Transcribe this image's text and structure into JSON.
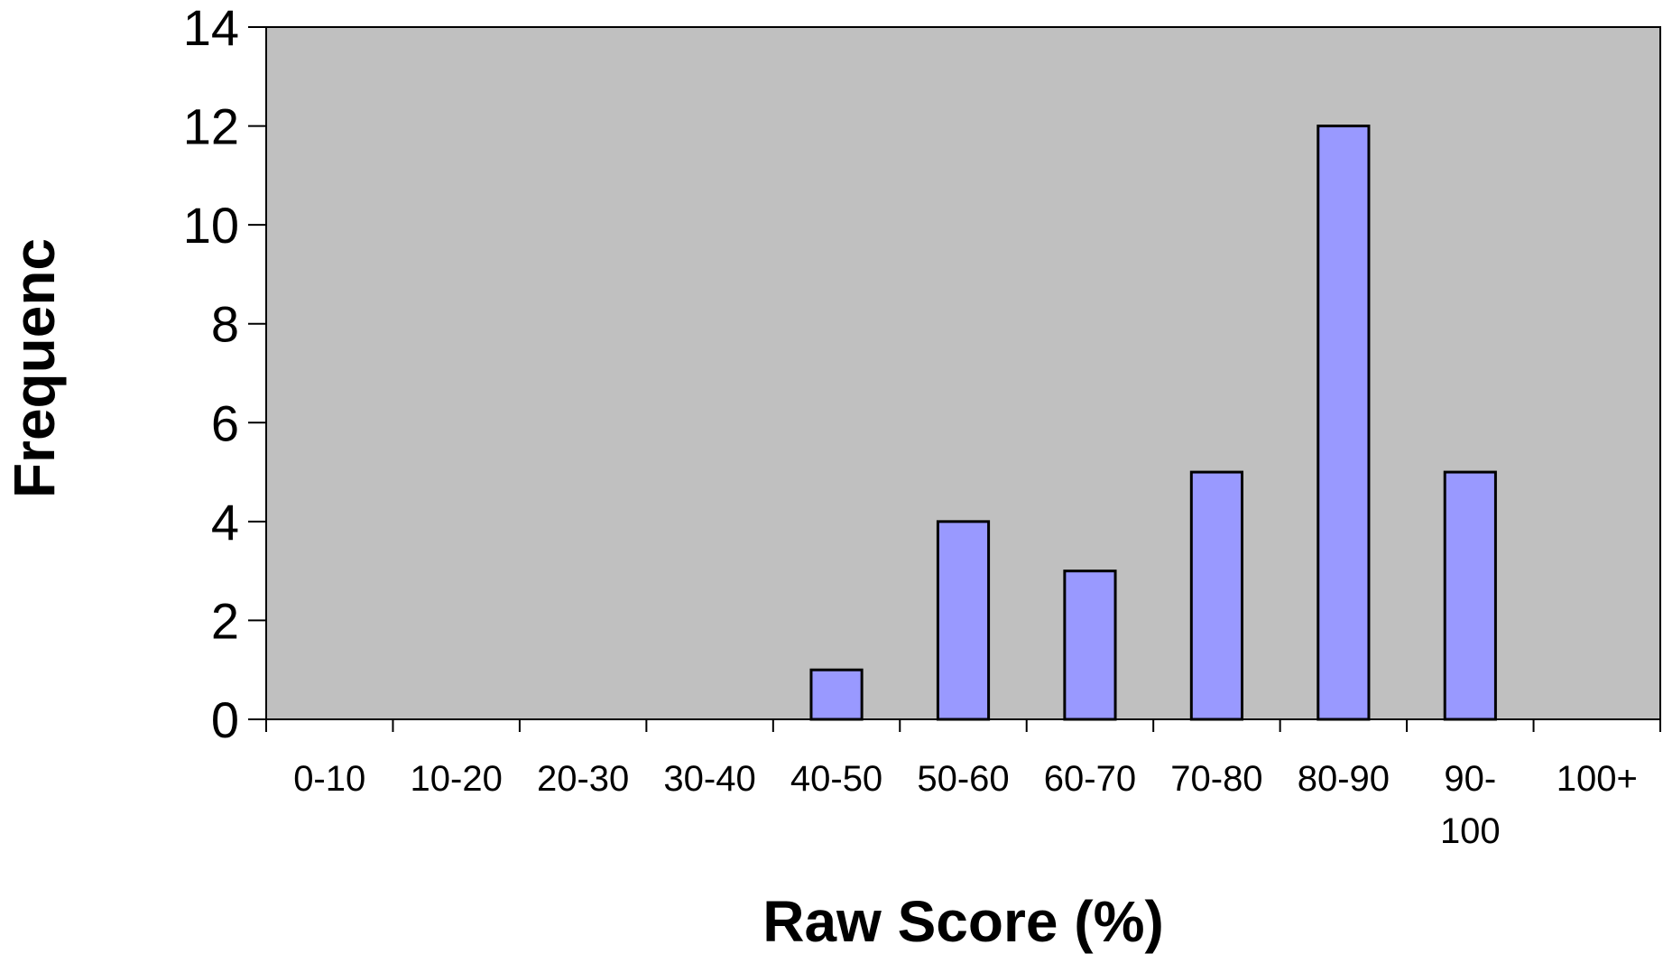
{
  "chart_data": {
    "type": "bar",
    "title": "",
    "xlabel": "Raw Score (%)",
    "ylabel": "Frequenc",
    "categories": [
      "0-10",
      "10-20",
      "20-30",
      "30-40",
      "40-50",
      "50-60",
      "60-70",
      "70-80",
      "80-90",
      "90-100",
      "100+"
    ],
    "category_label_lines": [
      [
        "0-10"
      ],
      [
        "10-20"
      ],
      [
        "20-30"
      ],
      [
        "30-40"
      ],
      [
        "40-50"
      ],
      [
        "50-60"
      ],
      [
        "60-70"
      ],
      [
        "70-80"
      ],
      [
        "80-90"
      ],
      [
        "90-",
        "100"
      ],
      [
        "100+"
      ]
    ],
    "values": [
      0,
      0,
      0,
      0,
      1,
      4,
      3,
      5,
      12,
      5,
      0
    ],
    "ylim": [
      0,
      14
    ],
    "yticks": [
      0,
      2,
      4,
      6,
      8,
      10,
      12,
      14
    ],
    "grid": false,
    "legend": "none",
    "colors": {
      "plot_background": "#c0c0c0",
      "bar_fill": "#9999ff",
      "bar_stroke": "#000000",
      "axis": "#000000"
    }
  }
}
